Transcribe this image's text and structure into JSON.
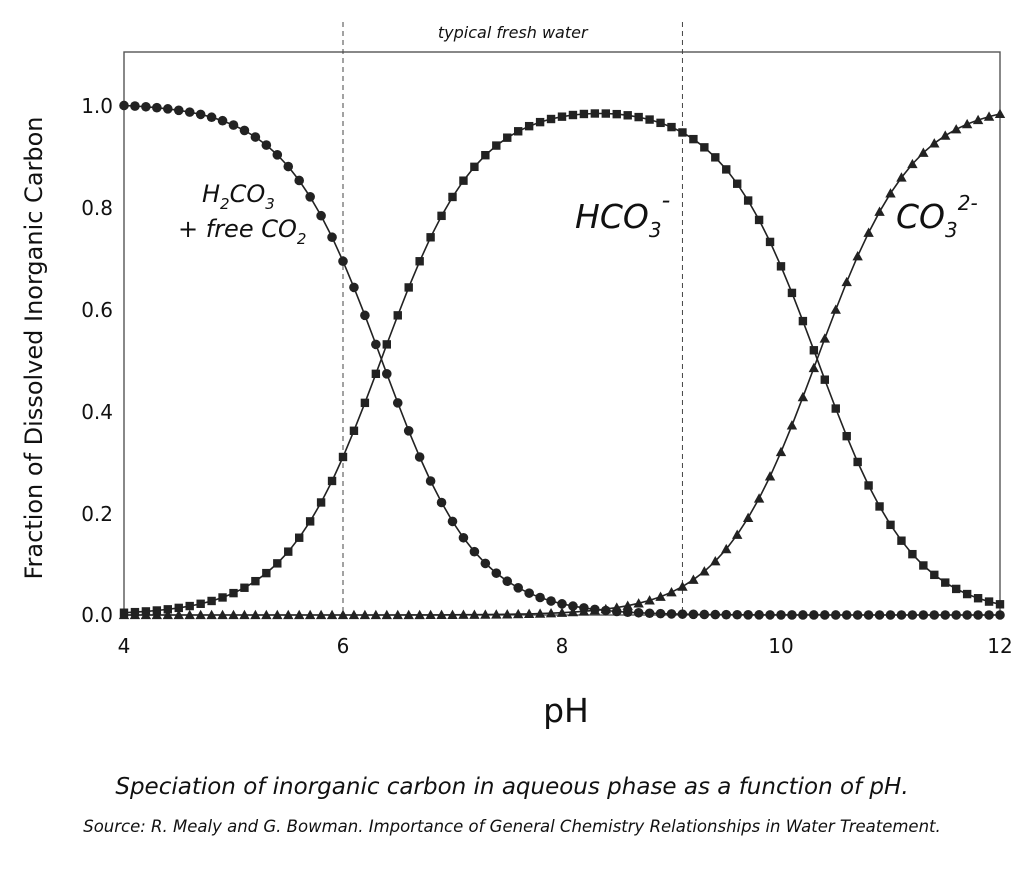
{
  "chart_data": {
    "type": "scatter",
    "title": "",
    "xlabel": "pH",
    "ylabel": "Fraction of Dissolved Inorganic Carbon",
    "xlim": [
      4,
      12
    ],
    "ylim": [
      0,
      1.1
    ],
    "xticks": [
      "4",
      "6",
      "8",
      "10",
      "12"
    ],
    "yticks": [
      "0.0",
      "0.2",
      "0.4",
      "0.6",
      "0.8",
      "1.0"
    ],
    "grid": false,
    "legend": "none",
    "pKa1": 6.35,
    "pKa2": 10.33,
    "series": [
      {
        "name": "H2CO3 + free CO2",
        "marker": "circle",
        "color": "#222222",
        "x_start": 4.0,
        "x_step": 0.1,
        "count": 81,
        "fraction": "1 / (1 + 10^(pH - pKa1) + 10^(2 pH - pKa1 - pKa2))"
      },
      {
        "name": "HCO3-",
        "marker": "square",
        "color": "#222222",
        "x_start": 4.0,
        "x_step": 0.1,
        "count": 81,
        "fraction": "10^(pH - pKa1) / (1 + 10^(pH - pKa1) + 10^(2 pH - pKa1 - pKa2))"
      },
      {
        "name": "CO3 2-",
        "marker": "triangle",
        "color": "#222222",
        "x_start": 4.0,
        "x_step": 0.1,
        "count": 81,
        "fraction": "10^(2 pH - pKa1 - pKa2) / (1 + 10^(pH - pKa1) + 10^(2 pH - pKa1 - pKa2))"
      }
    ],
    "region": {
      "label": "typical fresh water",
      "x_from": 6.0,
      "x_to": 9.1
    }
  },
  "labels": {
    "h2co3": {
      "base": "H",
      "sub1": "2",
      "mid": "CO",
      "sub2": "3"
    },
    "free_co2": {
      "prefix": "+ free CO",
      "sub": "2"
    },
    "hco3": {
      "base": "HCO",
      "sub": "3",
      "sup": "-"
    },
    "co3": {
      "base": "CO",
      "sub": "3",
      "sup": "2-"
    }
  },
  "caption": {
    "main": "Speciation of inorganic carbon in aqueous phase as a function of pH.",
    "source": "Source: R. Mealy and G. Bowman. Importance of General Chemistry Relationships in Water Treatement."
  }
}
